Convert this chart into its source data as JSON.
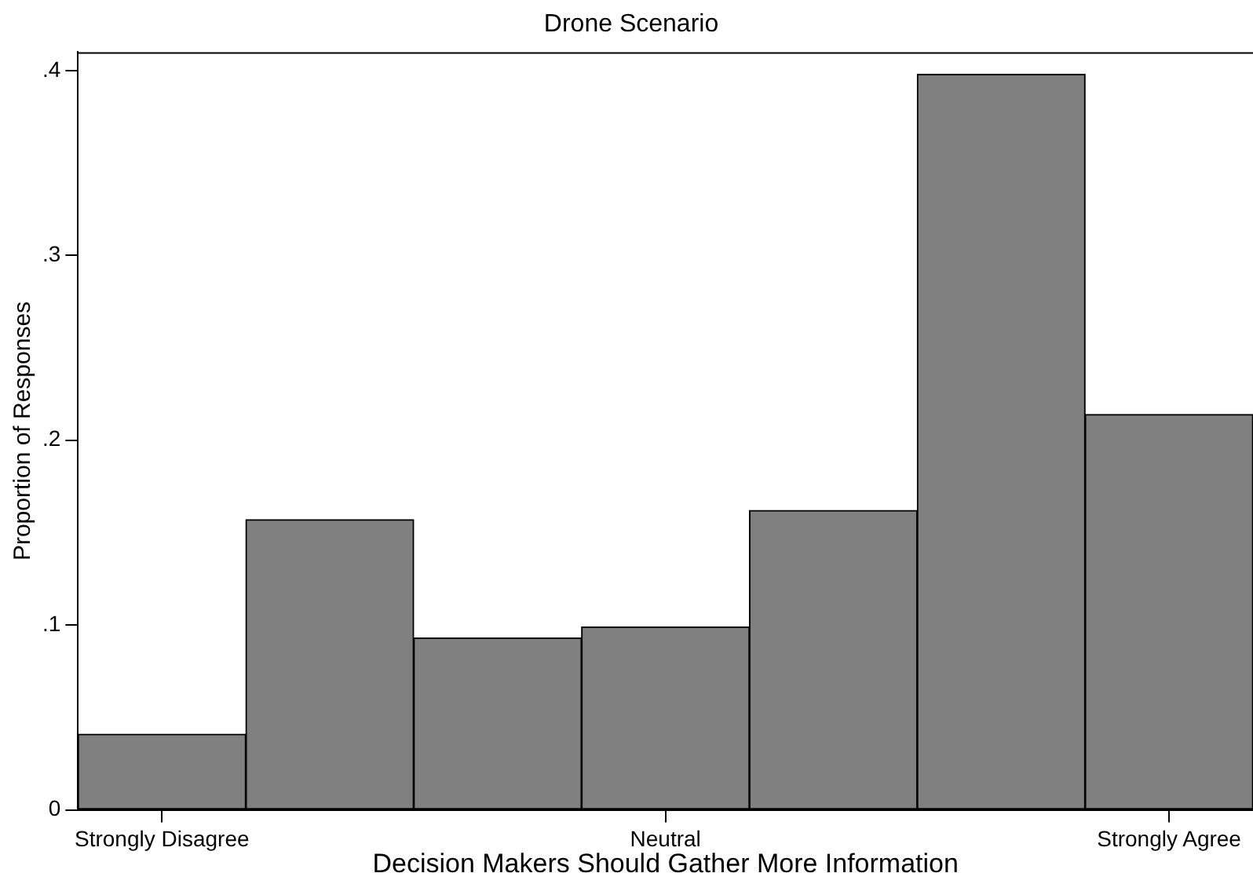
{
  "chart_data": {
    "type": "bar",
    "title": "Drone Scenario",
    "xlabel": "Decision Makers Should Gather More Information",
    "ylabel": "Proportion of Responses",
    "categories": [
      "Strongly Disagree",
      null,
      null,
      "Neutral",
      null,
      null,
      "Strongly Agree"
    ],
    "values": [
      0.041,
      0.157,
      0.093,
      0.099,
      0.162,
      0.398,
      0.214
    ],
    "color": "#808080",
    "ylim": [
      0,
      0.41
    ],
    "yticks": [
      {
        "value": 0,
        "label": "0"
      },
      {
        "value": 0.1,
        "label": ".1"
      },
      {
        "value": 0.2,
        "label": ".2"
      },
      {
        "value": 0.3,
        "label": ".3"
      },
      {
        "value": 0.4,
        "label": ".4"
      }
    ],
    "grid": false,
    "legend": false
  }
}
